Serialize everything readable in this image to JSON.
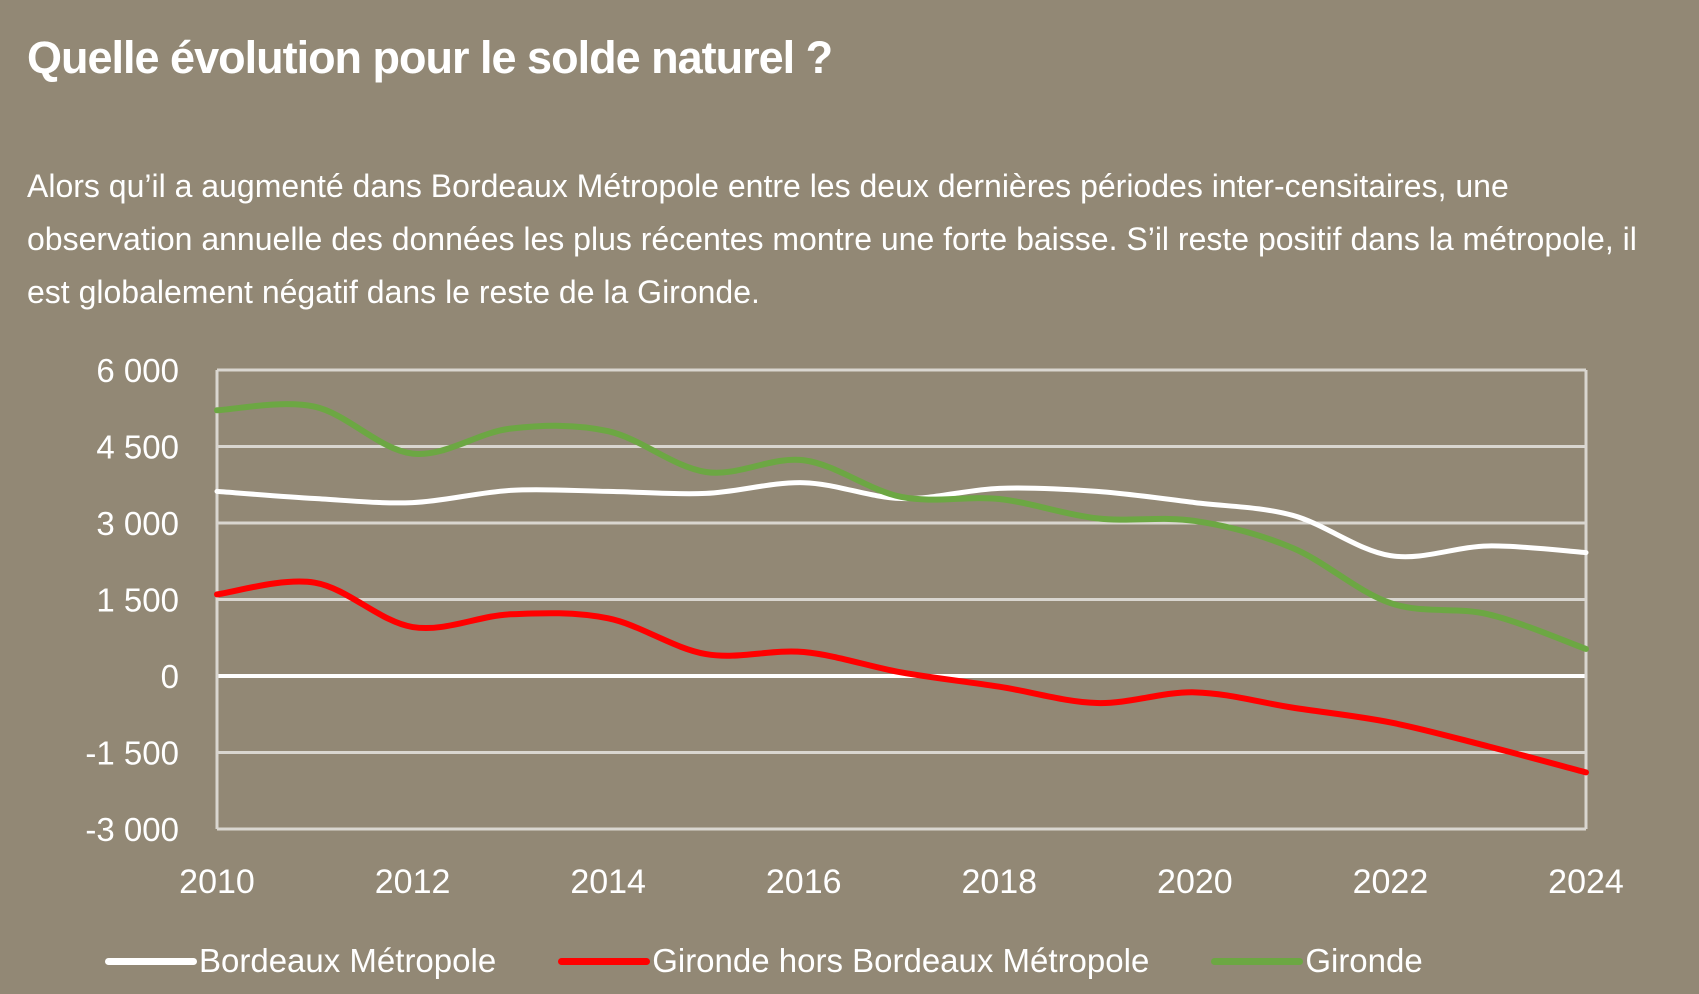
{
  "title": "Quelle évolution pour le solde naturel ?",
  "description": "Alors qu’il a augmenté dans Bordeaux Métropole entre les deux dernières périodes inter-censitaires, une observation annuelle des données les plus récentes montre une forte baisse. S’il reste positif dans la métropole, il est globalement négatif dans le reste de la Gironde.",
  "background_color": "#928875",
  "chart_data": {
    "type": "line",
    "title": "",
    "xlabel": "",
    "ylabel": "",
    "x": [
      2010,
      2011,
      2012,
      2013,
      2014,
      2015,
      2016,
      2017,
      2018,
      2019,
      2020,
      2021,
      2022,
      2023,
      2024
    ],
    "xticks": [
      "2010",
      "2012",
      "2014",
      "2016",
      "2018",
      "2020",
      "2022",
      "2024"
    ],
    "xlim": [
      2010,
      2024
    ],
    "ylim": [
      -3000,
      6000
    ],
    "yticks": [
      6000,
      4500,
      3000,
      1500,
      0,
      -1500,
      -3000
    ],
    "ytick_labels": [
      "6 000",
      "4 500",
      "3 000",
      "1 500",
      "0",
      "-1 500",
      "-3 000"
    ],
    "grid": true,
    "smooth": true,
    "legend_position": "bottom",
    "series": [
      {
        "name": "Bordeaux Métropole",
        "color": "#ffffff",
        "values": [
          3620,
          3480,
          3400,
          3640,
          3620,
          3580,
          3790,
          3480,
          3680,
          3620,
          3400,
          3150,
          2360,
          2550,
          2420
        ]
      },
      {
        "name": "Gironde hors Bordeaux Métropole",
        "color": "#ff0000",
        "values": [
          1600,
          1830,
          960,
          1210,
          1130,
          430,
          470,
          70,
          -210,
          -530,
          -320,
          -620,
          -910,
          -1380,
          -1890
        ]
      },
      {
        "name": "Gironde",
        "color": "#6ca743",
        "values": [
          5210,
          5280,
          4360,
          4850,
          4800,
          4000,
          4230,
          3510,
          3470,
          3090,
          3040,
          2510,
          1430,
          1210,
          530
        ]
      }
    ]
  }
}
